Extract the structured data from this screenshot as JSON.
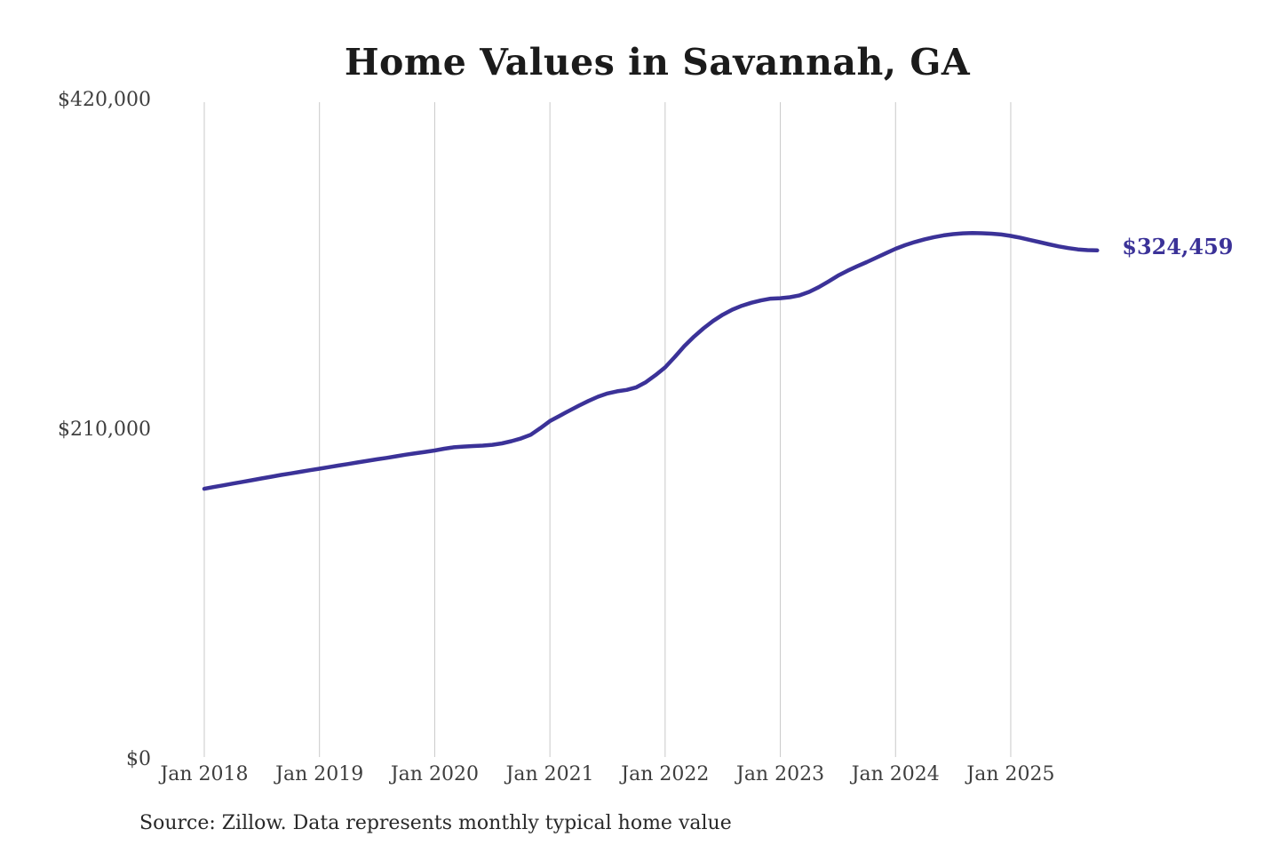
{
  "chart": {
    "title": "Home Values in Savannah, GA",
    "end_label": "$324,459",
    "source": "Source: Zillow. Data represents monthly typical home value"
  },
  "colors": {
    "line": "#3b3298",
    "grid": "#c9c9c9",
    "title_text": "#1b1b1b",
    "tick_text": "#3e3e3e",
    "source_text": "#282828"
  },
  "chart_data": {
    "type": "line",
    "title": "Home Values in Savannah, GA",
    "series_name": "Monthly typical home value",
    "x_interval": "monthly",
    "x_start": "Jan 2018",
    "x_end": "Oct 2025",
    "x_tick_labels": [
      "Jan 2018",
      "Jan 2019",
      "Jan 2020",
      "Jan 2021",
      "Jan 2022",
      "Jan 2023",
      "Jan 2024",
      "Jan 2025"
    ],
    "y_tick_labels": [
      "$0",
      "$210,000",
      "$420,000"
    ],
    "y_tick_values": [
      0,
      210000,
      420000
    ],
    "ylim": [
      0,
      420000
    ],
    "grid": "vertical-only",
    "legend": "none",
    "line_color": "#3b3298",
    "grid_color": "#c9c9c9",
    "end_value": 324459,
    "end_value_label": "$324,459",
    "values": [
      172600,
      173700,
      174800,
      175900,
      177000,
      178100,
      179200,
      180300,
      181400,
      182400,
      183400,
      184400,
      185400,
      186400,
      187400,
      188400,
      189400,
      190400,
      191400,
      192300,
      193300,
      194300,
      195200,
      196100,
      197000,
      198100,
      199000,
      199500,
      199800,
      200100,
      200600,
      201500,
      202900,
      204700,
      207000,
      211200,
      215700,
      219000,
      222300,
      225500,
      228500,
      231200,
      233300,
      234700,
      235600,
      237200,
      240500,
      245000,
      249900,
      256500,
      263500,
      269500,
      274800,
      279500,
      283500,
      286700,
      289200,
      291100,
      292600,
      293700,
      294000,
      294600,
      295800,
      298000,
      301000,
      304600,
      308300,
      311500,
      314300,
      317000,
      319800,
      322700,
      325500,
      327800,
      329800,
      331500,
      332900,
      334000,
      334800,
      335300,
      335500,
      335400,
      335100,
      334600,
      333700,
      332500,
      331100,
      329700,
      328300,
      327000,
      325900,
      325100,
      324600,
      324459
    ],
    "source": "Source: Zillow. Data represents monthly typical home value"
  }
}
